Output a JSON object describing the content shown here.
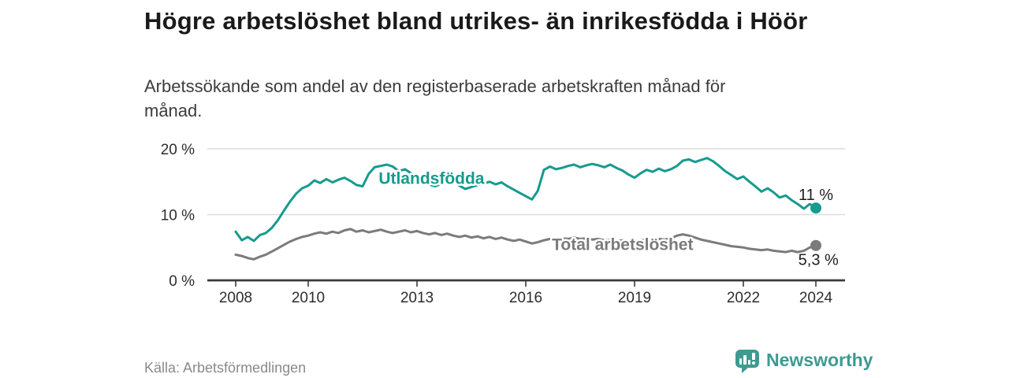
{
  "header": {
    "title": "Högre arbetslöshet bland utrikes- än inrikesfödda i Höör",
    "subtitle": "Arbetssökande som andel av den registerbaserade arbetskraften månad för månad."
  },
  "footer": {
    "source": "Källa: Arbetsförmedlingen",
    "brand": "Newsworthy",
    "brand_icon": "speech-bubble-bar-chart-icon"
  },
  "colors": {
    "accent_teal": "#169b8d",
    "line_gray": "#7b7b7b",
    "axis": "#3a3a3a",
    "grid": "#dcdcdc",
    "label_dark": "#1f1f1f",
    "tick_text": "#2d2d2d",
    "brand_teal": "#3f9a90"
  },
  "chart_data": {
    "type": "line",
    "x_unit": "decimal_year",
    "ylim": [
      0,
      21
    ],
    "xlim": [
      2007.2,
      2024.8
    ],
    "grid": "horizontal",
    "yticks": [
      {
        "value": 0,
        "label": "0 %"
      },
      {
        "value": 10,
        "label": "10 %"
      },
      {
        "value": 20,
        "label": "20 %"
      }
    ],
    "xticks": [
      {
        "value": 2008,
        "label": "2008"
      },
      {
        "value": 2010,
        "label": "2010"
      },
      {
        "value": 2013,
        "label": "2013"
      },
      {
        "value": 2016,
        "label": "2016"
      },
      {
        "value": 2019,
        "label": "2019"
      },
      {
        "value": 2022,
        "label": "2022"
      },
      {
        "value": 2024,
        "label": "2024"
      }
    ],
    "x": [
      2008.0,
      2008.17,
      2008.33,
      2008.5,
      2008.67,
      2008.83,
      2009.0,
      2009.17,
      2009.33,
      2009.5,
      2009.67,
      2009.83,
      2010.0,
      2010.17,
      2010.33,
      2010.5,
      2010.67,
      2010.83,
      2011.0,
      2011.17,
      2011.33,
      2011.5,
      2011.67,
      2011.83,
      2012.0,
      2012.17,
      2012.33,
      2012.5,
      2012.67,
      2012.83,
      2013.0,
      2013.17,
      2013.33,
      2013.5,
      2013.67,
      2013.83,
      2014.0,
      2014.17,
      2014.33,
      2014.5,
      2014.67,
      2014.83,
      2015.0,
      2015.17,
      2015.33,
      2015.5,
      2015.67,
      2015.83,
      2016.0,
      2016.17,
      2016.33,
      2016.5,
      2016.67,
      2016.83,
      2017.0,
      2017.17,
      2017.33,
      2017.5,
      2017.67,
      2017.83,
      2018.0,
      2018.17,
      2018.33,
      2018.5,
      2018.67,
      2018.83,
      2019.0,
      2019.17,
      2019.33,
      2019.5,
      2019.67,
      2019.83,
      2020.0,
      2020.17,
      2020.33,
      2020.5,
      2020.67,
      2020.83,
      2021.0,
      2021.17,
      2021.33,
      2021.5,
      2021.67,
      2021.83,
      2022.0,
      2022.17,
      2022.33,
      2022.5,
      2022.67,
      2022.83,
      2023.0,
      2023.17,
      2023.33,
      2023.5,
      2023.67,
      2023.83,
      2024.0
    ],
    "series": [
      {
        "name": "Utlandsfödda",
        "color": "#169b8d",
        "end_value_label": "11 %",
        "values": [
          7.4,
          6.1,
          6.6,
          6.0,
          6.9,
          7.2,
          8.0,
          9.2,
          10.6,
          12.0,
          13.2,
          14.0,
          14.4,
          15.2,
          14.8,
          15.4,
          14.9,
          15.3,
          15.6,
          15.1,
          14.5,
          14.3,
          16.2,
          17.2,
          17.4,
          17.6,
          17.3,
          16.6,
          16.9,
          16.3,
          15.7,
          15.1,
          14.6,
          14.3,
          14.7,
          15.0,
          15.1,
          14.4,
          13.9,
          14.2,
          14.5,
          14.7,
          15.0,
          14.6,
          14.9,
          14.3,
          13.8,
          13.3,
          12.8,
          12.3,
          13.6,
          16.8,
          17.3,
          16.9,
          17.1,
          17.4,
          17.6,
          17.2,
          17.5,
          17.7,
          17.5,
          17.2,
          17.6,
          17.1,
          16.7,
          16.1,
          15.6,
          16.3,
          16.8,
          16.5,
          17.0,
          16.6,
          16.9,
          17.4,
          18.2,
          18.4,
          18.0,
          18.3,
          18.6,
          18.1,
          17.4,
          16.6,
          16.0,
          15.4,
          15.8,
          15.0,
          14.3,
          13.5,
          14.0,
          13.4,
          12.6,
          12.9,
          12.2,
          11.6,
          10.9,
          11.6,
          11.0
        ]
      },
      {
        "name": "Total arbetslöshet",
        "color": "#7b7b7b",
        "end_value_label": "5,3 %",
        "values": [
          3.9,
          3.7,
          3.4,
          3.2,
          3.6,
          3.9,
          4.4,
          4.9,
          5.4,
          5.9,
          6.3,
          6.6,
          6.8,
          7.1,
          7.3,
          7.1,
          7.4,
          7.2,
          7.6,
          7.8,
          7.4,
          7.6,
          7.3,
          7.5,
          7.7,
          7.4,
          7.2,
          7.4,
          7.6,
          7.3,
          7.5,
          7.2,
          7.0,
          7.2,
          6.9,
          7.1,
          6.8,
          6.6,
          6.8,
          6.5,
          6.7,
          6.4,
          6.6,
          6.3,
          6.5,
          6.2,
          6.0,
          6.2,
          5.9,
          5.6,
          5.8,
          6.1,
          6.3,
          6.2,
          6.4,
          6.3,
          6.5,
          6.3,
          6.4,
          6.2,
          6.3,
          6.1,
          6.2,
          6.0,
          6.1,
          5.9,
          6.0,
          6.1,
          6.2,
          6.1,
          6.3,
          6.2,
          6.4,
          6.8,
          7.0,
          6.8,
          6.5,
          6.2,
          6.0,
          5.8,
          5.6,
          5.4,
          5.2,
          5.1,
          5.0,
          4.8,
          4.7,
          4.6,
          4.7,
          4.5,
          4.4,
          4.3,
          4.5,
          4.3,
          4.5,
          5.0,
          5.3
        ]
      }
    ],
    "series_labels": [
      {
        "text": "Utlandsfödda",
        "x": 2013.4,
        "y": 15.5,
        "color": "#169b8d"
      },
      {
        "text": "Total arbetslöshet",
        "x": 2018.67,
        "y": 5.45,
        "color": "#7b7b7b"
      }
    ],
    "end_labels": [
      {
        "text": "11 %",
        "x": 2024.0,
        "y": 13.05
      },
      {
        "text": "5,3 %",
        "x": 2024.07,
        "y": 3.2
      }
    ]
  }
}
